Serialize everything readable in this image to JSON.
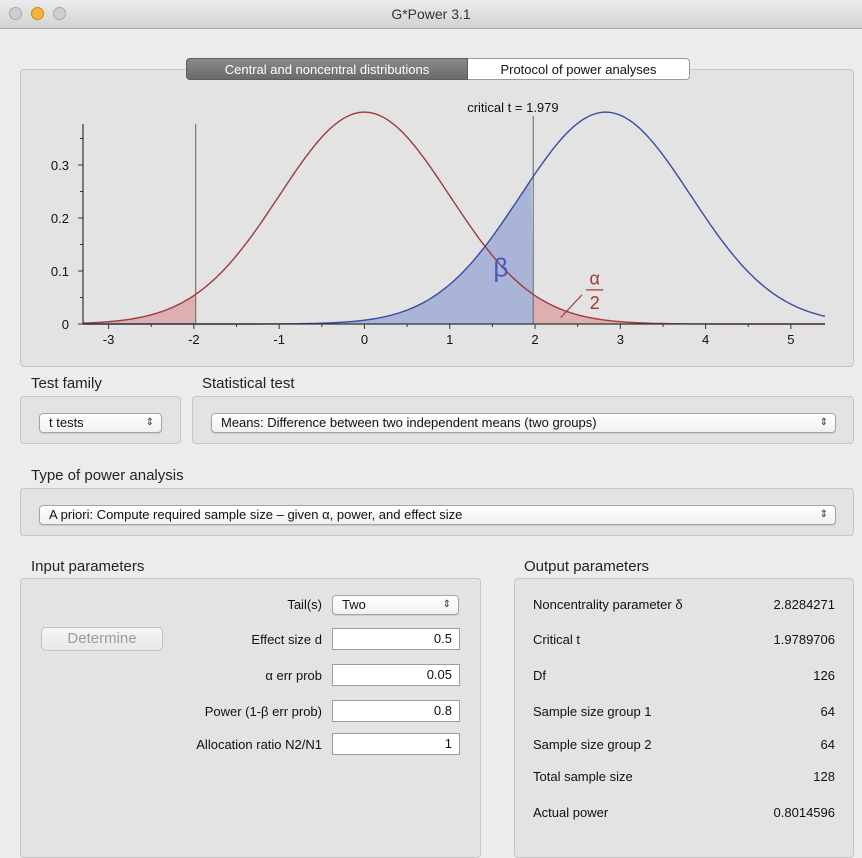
{
  "window": {
    "title": "G*Power 3.1"
  },
  "tabs": {
    "active": "Central and noncentral distributions",
    "inactive": "Protocol of power analyses"
  },
  "chart_data": {
    "type": "line",
    "title": "critical t = 1.979",
    "xlim": [
      -3.3,
      5.4
    ],
    "ylim": [
      0,
      0.4
    ],
    "x_ticks": [
      "-3",
      "-2",
      "-1",
      "0",
      "1",
      "2",
      "3",
      "4",
      "5"
    ],
    "y_ticks": [
      "0",
      "0.1",
      "0.2",
      "0.3"
    ],
    "critical_t": 1.979,
    "noncentrality": 2.8284271,
    "series": [
      {
        "distribution": "central t",
        "mean": 0,
        "color": "#a33a3a"
      },
      {
        "distribution": "noncentral t",
        "mean": 2.8284271,
        "color": "#3a4aa8"
      }
    ],
    "annotations": {
      "beta": "β",
      "alpha": "α",
      "alpha_den": "2"
    },
    "colors": {
      "beta_fill": "#aab4d6",
      "alpha_fill": "#dcb0b0"
    }
  },
  "test_family": {
    "label": "Test family",
    "value": "t tests"
  },
  "statistical_test": {
    "label": "Statistical test",
    "value": "Means: Difference between two independent means (two groups)"
  },
  "power_analysis": {
    "label": "Type of power analysis",
    "value": "A priori: Compute required sample size – given α, power, and effect size"
  },
  "input": {
    "label": "Input parameters",
    "determine": "Determine",
    "tails_label": "Tail(s)",
    "tails_value": "Two",
    "rows": [
      {
        "label": "Effect size d",
        "value": "0.5"
      },
      {
        "label": "α err prob",
        "value": "0.05"
      },
      {
        "label": "Power (1-β err prob)",
        "value": "0.8"
      },
      {
        "label": "Allocation ratio N2/N1",
        "value": "1"
      }
    ]
  },
  "output": {
    "label": "Output parameters",
    "rows": [
      {
        "label": "Noncentrality parameter δ",
        "value": "2.8284271"
      },
      {
        "label": "Critical t",
        "value": "1.9789706"
      },
      {
        "label": "Df",
        "value": "126"
      },
      {
        "label": "Sample size group 1",
        "value": "64"
      },
      {
        "label": "Sample size group 2",
        "value": "64"
      },
      {
        "label": "Total sample size",
        "value": "128"
      },
      {
        "label": "Actual power",
        "value": "0.8014596"
      }
    ]
  }
}
